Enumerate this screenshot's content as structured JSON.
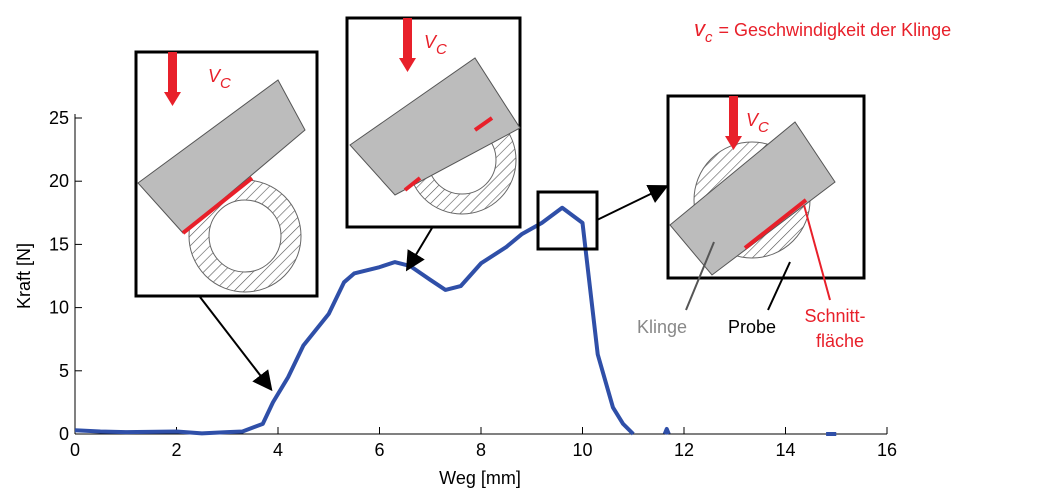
{
  "chart_data": {
    "type": "line",
    "xlabel": "Weg [mm]",
    "ylabel": "Kraft [N]",
    "xlim": [
      0,
      16
    ],
    "xticks": [
      0,
      2,
      4,
      6,
      8,
      10,
      12,
      14,
      16
    ],
    "ylim": [
      0,
      25
    ],
    "yticks": [
      0,
      5,
      10,
      15,
      20,
      25
    ],
    "series": [
      {
        "color": "#2f4fa8",
        "x": [
          0,
          0.5,
          1,
          2,
          2.5,
          3,
          3.3,
          3.7,
          3.9,
          4.2,
          4.5,
          5,
          5.3,
          5.5,
          6,
          6.3,
          6.6,
          7,
          7.3,
          7.6,
          8,
          8.5,
          8.8,
          9.2,
          9.6,
          10,
          10.3,
          10.6,
          10.8,
          11,
          11.3,
          11.62,
          11.66,
          11.7,
          13,
          14.8,
          15
        ],
        "values": [
          0.3,
          0.2,
          0.15,
          0.2,
          0.05,
          0.15,
          0.2,
          0.8,
          2.5,
          4.5,
          7,
          9.5,
          12,
          12.7,
          13.2,
          13.6,
          13.3,
          12.2,
          11.4,
          11.7,
          13.5,
          14.8,
          15.8,
          16.7,
          17.9,
          16.7,
          6.3,
          2.1,
          0.8,
          0,
          null,
          0,
          0.4,
          0,
          null,
          0,
          0
        ]
      }
    ],
    "note_symbol": "v",
    "note_subscript": "c",
    "note_text": "= Geschwindigkeit der Klinge",
    "inset_symbol": "V",
    "inset_subscript": "C",
    "label_blade": "Klinge",
    "label_sample": "Probe",
    "label_cut_1": "Schnitt-",
    "label_cut_2": "fläche"
  }
}
